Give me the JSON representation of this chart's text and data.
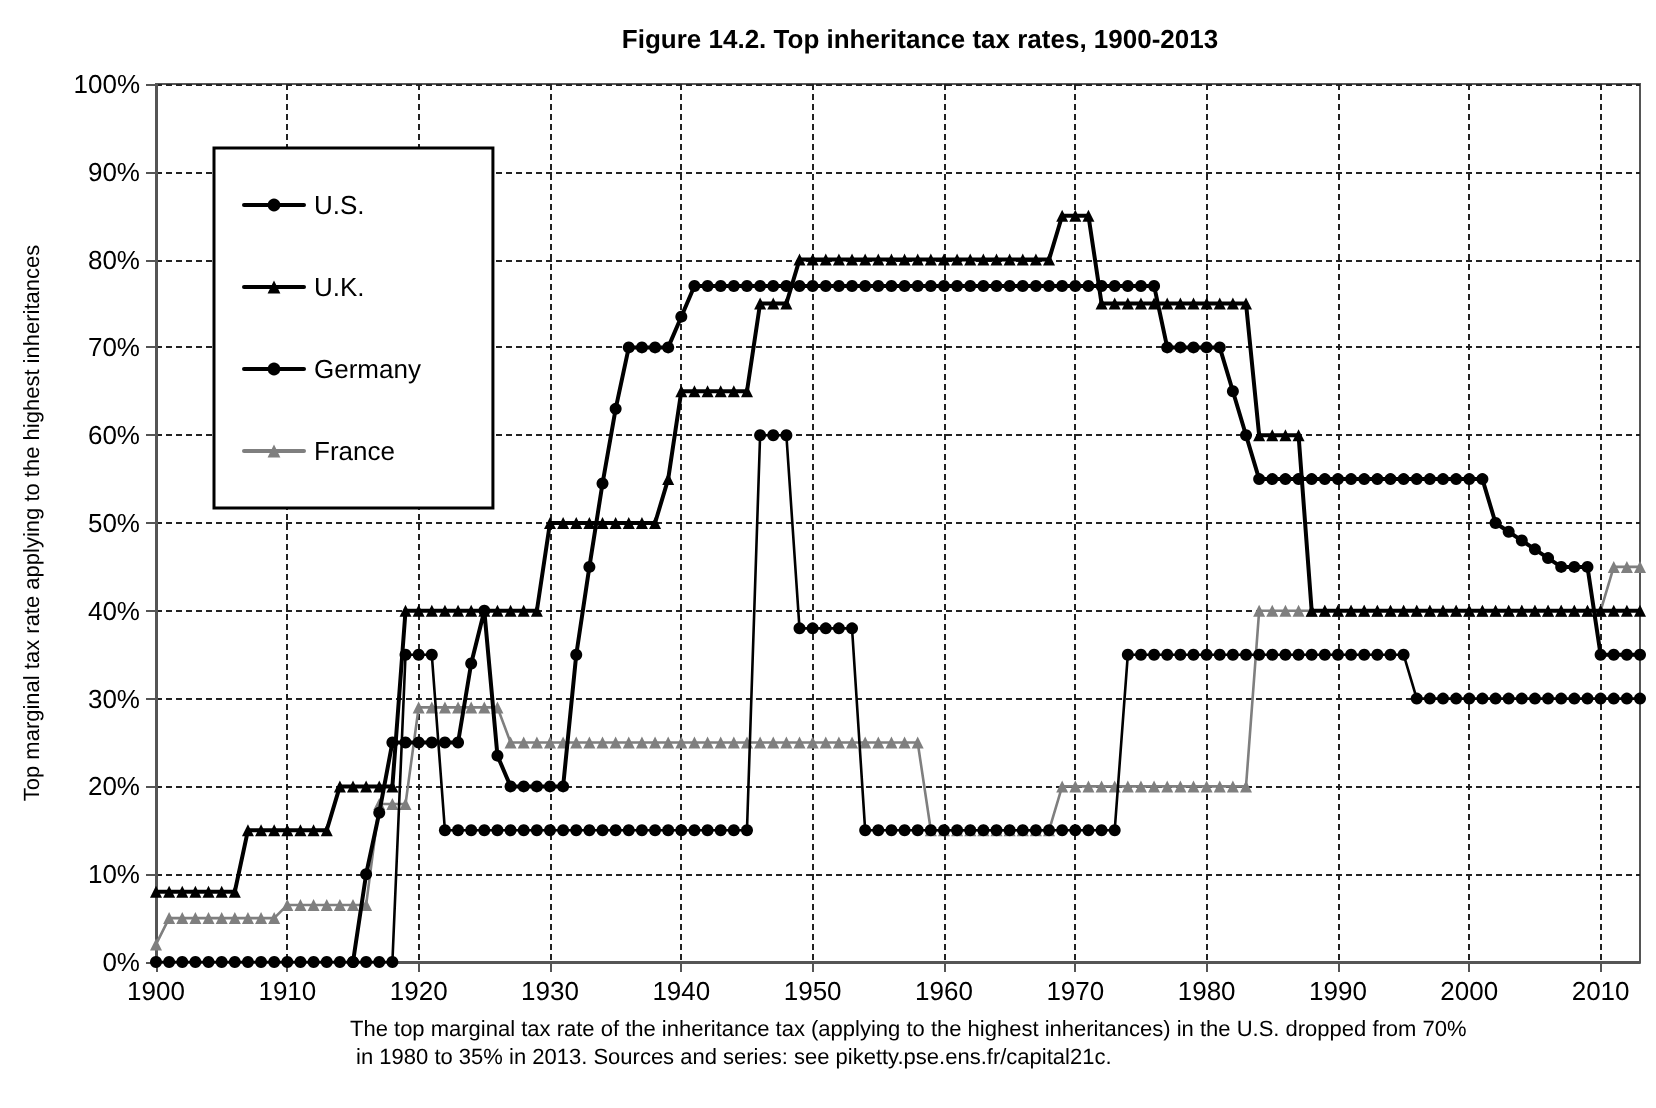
{
  "chart_data": {
    "type": "line",
    "title": "Figure 14.2. Top inheritance tax rates, 1900-2013",
    "ylabel": "Top marginal tax rate applying to the highest inheritances",
    "annotations": [
      "The top marginal tax rate of the inheritance tax (applying to the highest inheritances) in the U.S. dropped from 70% in 1980 to 35% in 2013. Sources and series: see piketty.pse.ens.fr/capital21c."
    ],
    "x": [
      1900,
      1901,
      1902,
      1903,
      1904,
      1905,
      1906,
      1907,
      1908,
      1909,
      1910,
      1911,
      1912,
      1913,
      1914,
      1915,
      1916,
      1917,
      1918,
      1919,
      1920,
      1921,
      1922,
      1923,
      1924,
      1925,
      1926,
      1927,
      1928,
      1929,
      1930,
      1931,
      1932,
      1933,
      1934,
      1935,
      1936,
      1937,
      1938,
      1939,
      1940,
      1941,
      1942,
      1943,
      1944,
      1945,
      1946,
      1947,
      1948,
      1949,
      1950,
      1951,
      1952,
      1953,
      1954,
      1955,
      1956,
      1957,
      1958,
      1959,
      1960,
      1961,
      1962,
      1963,
      1964,
      1965,
      1966,
      1967,
      1968,
      1969,
      1970,
      1971,
      1972,
      1973,
      1974,
      1975,
      1976,
      1977,
      1978,
      1979,
      1980,
      1981,
      1982,
      1983,
      1984,
      1985,
      1986,
      1987,
      1988,
      1989,
      1990,
      1991,
      1992,
      1993,
      1994,
      1995,
      1996,
      1997,
      1998,
      1999,
      2000,
      2001,
      2002,
      2003,
      2004,
      2005,
      2006,
      2007,
      2008,
      2009,
      2010,
      2011,
      2012,
      2013
    ],
    "series": [
      {
        "name": "U.S.",
        "color": "#000000",
        "marker": "circle",
        "values": [
          null,
          null,
          null,
          null,
          null,
          null,
          null,
          null,
          null,
          null,
          null,
          null,
          null,
          null,
          null,
          0,
          10,
          17,
          25,
          25,
          25,
          25,
          25,
          25,
          34,
          40,
          23.5,
          20,
          20,
          20,
          20,
          20,
          35,
          45,
          54.5,
          63,
          70,
          70,
          70,
          70,
          73.5,
          77,
          77,
          77,
          77,
          77,
          77,
          77,
          77,
          77,
          77,
          77,
          77,
          77,
          77,
          77,
          77,
          77,
          77,
          77,
          77,
          77,
          77,
          77,
          77,
          77,
          77,
          77,
          77,
          77,
          77,
          77,
          77,
          77,
          77,
          77,
          77,
          70,
          70,
          70,
          70,
          70,
          65,
          60,
          55,
          55,
          55,
          55,
          55,
          55,
          55,
          55,
          55,
          55,
          55,
          55,
          55,
          55,
          55,
          55,
          55,
          55,
          50,
          49,
          48,
          47,
          46,
          45,
          45,
          45,
          35,
          35,
          35,
          35
        ]
      },
      {
        "name": "U.K.",
        "color": "#000000",
        "marker": "triangle",
        "values": [
          8,
          8,
          8,
          8,
          8,
          8,
          8,
          15,
          15,
          15,
          15,
          15,
          15,
          15,
          20,
          20,
          20,
          20,
          20,
          40,
          40,
          40,
          40,
          40,
          40,
          40,
          40,
          40,
          40,
          40,
          50,
          50,
          50,
          50,
          50,
          50,
          50,
          50,
          50,
          55,
          65,
          65,
          65,
          65,
          65,
          65,
          75,
          75,
          75,
          80,
          80,
          80,
          80,
          80,
          80,
          80,
          80,
          80,
          80,
          80,
          80,
          80,
          80,
          80,
          80,
          80,
          80,
          80,
          80,
          85,
          85,
          85,
          75,
          75,
          75,
          75,
          75,
          75,
          75,
          75,
          75,
          75,
          75,
          75,
          60,
          60,
          60,
          60,
          40,
          40,
          40,
          40,
          40,
          40,
          40,
          40,
          40,
          40,
          40,
          40,
          40,
          40,
          40,
          40,
          40,
          40,
          40,
          40,
          40,
          40,
          40,
          40,
          40,
          40
        ]
      },
      {
        "name": "Germany",
        "color": "#000000",
        "marker": "circle",
        "values": [
          0,
          0,
          0,
          0,
          0,
          0,
          0,
          0,
          0,
          0,
          0,
          0,
          0,
          0,
          0,
          0,
          0,
          0,
          0,
          35,
          35,
          35,
          15,
          15,
          15,
          15,
          15,
          15,
          15,
          15,
          15,
          15,
          15,
          15,
          15,
          15,
          15,
          15,
          15,
          15,
          15,
          15,
          15,
          15,
          15,
          15,
          60,
          60,
          60,
          38,
          38,
          38,
          38,
          38,
          15,
          15,
          15,
          15,
          15,
          15,
          15,
          15,
          15,
          15,
          15,
          15,
          15,
          15,
          15,
          15,
          15,
          15,
          15,
          15,
          35,
          35,
          35,
          35,
          35,
          35,
          35,
          35,
          35,
          35,
          35,
          35,
          35,
          35,
          35,
          35,
          35,
          35,
          35,
          35,
          35,
          35,
          30,
          30,
          30,
          30,
          30,
          30,
          30,
          30,
          30,
          30,
          30,
          30,
          30,
          30,
          30,
          30,
          30,
          30
        ]
      },
      {
        "name": "France",
        "color": "#7f7f7f",
        "marker": "triangle",
        "values": [
          2,
          5,
          5,
          5,
          5,
          5,
          5,
          5,
          5,
          5,
          6.5,
          6.5,
          6.5,
          6.5,
          6.5,
          6.5,
          6.5,
          18,
          18,
          18,
          29,
          29,
          29,
          29,
          29,
          29,
          29,
          25,
          25,
          25,
          25,
          25,
          25,
          25,
          25,
          25,
          25,
          25,
          25,
          25,
          25,
          25,
          25,
          25,
          25,
          25,
          25,
          25,
          25,
          25,
          25,
          25,
          25,
          25,
          25,
          25,
          25,
          25,
          25,
          15,
          15,
          15,
          15,
          15,
          15,
          15,
          15,
          15,
          15,
          20,
          20,
          20,
          20,
          20,
          20,
          20,
          20,
          20,
          20,
          20,
          20,
          20,
          20,
          20,
          40,
          40,
          40,
          40,
          40,
          40,
          40,
          40,
          40,
          40,
          40,
          40,
          40,
          40,
          40,
          40,
          40,
          40,
          40,
          40,
          40,
          40,
          40,
          40,
          40,
          40,
          40,
          45,
          45,
          45
        ]
      }
    ],
    "xlim": [
      1900,
      2013
    ],
    "xticks": [
      1900,
      1910,
      1920,
      1930,
      1940,
      1950,
      1960,
      1970,
      1980,
      1990,
      2000,
      2010
    ],
    "ylim": [
      0,
      100
    ],
    "yticks": [
      {
        "value": 0,
        "label": "0%"
      },
      {
        "value": 10,
        "label": "10%"
      },
      {
        "value": 20,
        "label": "20%"
      },
      {
        "value": 30,
        "label": "30%"
      },
      {
        "value": 40,
        "label": "40%"
      },
      {
        "value": 50,
        "label": "50%"
      },
      {
        "value": 60,
        "label": "60%"
      },
      {
        "value": 70,
        "label": "70%"
      },
      {
        "value": 80,
        "label": "80%"
      },
      {
        "value": 90,
        "label": "90%"
      },
      {
        "value": 100,
        "label": "100%"
      }
    ],
    "grid": true,
    "legend": "top left",
    "line_style": "solid"
  }
}
